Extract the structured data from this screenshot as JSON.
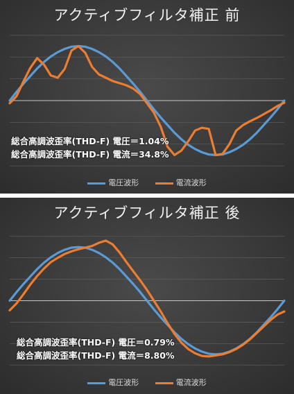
{
  "colors": {
    "voltage": "#5b9bd5",
    "current": "#ed7d31",
    "gridline": "#5a5a5a",
    "zeroline": "#c8c8c8"
  },
  "chart_data": [
    {
      "type": "line",
      "title": "アクティブフィルタ補正 前",
      "xlabel": "",
      "ylabel": "",
      "ylim": [
        -1.3,
        1.3
      ],
      "grid": true,
      "legend_position": "bottom",
      "x": [
        0,
        1,
        2,
        3,
        4,
        5,
        6,
        7,
        8,
        9,
        10,
        11,
        12,
        13,
        14,
        15,
        16,
        17,
        18,
        19,
        20,
        21,
        22,
        23,
        24,
        25,
        26,
        27,
        28,
        29,
        30,
        31,
        32,
        33,
        34,
        35,
        36,
        37,
        38,
        39,
        40
      ],
      "series": [
        {
          "name": "電圧波形",
          "values": [
            0.0,
            0.16,
            0.31,
            0.45,
            0.59,
            0.71,
            0.81,
            0.89,
            0.95,
            0.99,
            1.0,
            0.99,
            0.95,
            0.89,
            0.81,
            0.71,
            0.59,
            0.45,
            0.31,
            0.16,
            0.0,
            -0.16,
            -0.31,
            -0.45,
            -0.59,
            -0.71,
            -0.81,
            -0.89,
            -0.95,
            -0.99,
            -1.0,
            -0.99,
            -0.95,
            -0.89,
            -0.81,
            -0.71,
            -0.59,
            -0.45,
            -0.31,
            -0.16,
            0.0
          ]
        },
        {
          "name": "電流波形",
          "values": [
            -0.05,
            0.08,
            0.35,
            0.6,
            0.78,
            0.66,
            0.46,
            0.42,
            0.58,
            0.92,
            1.0,
            0.88,
            0.62,
            0.48,
            0.42,
            0.36,
            0.32,
            0.28,
            0.22,
            0.12,
            -0.05,
            -0.22,
            -0.48,
            -0.85,
            -1.0,
            -0.92,
            -0.75,
            -0.55,
            -0.5,
            -0.52,
            -1.0,
            -0.98,
            -0.8,
            -0.55,
            -0.45,
            -0.38,
            -0.32,
            -0.25,
            -0.18,
            -0.1,
            -0.04
          ]
        }
      ],
      "annotations": [
        "総合高調波歪率(THD-F) 電圧＝1.04%",
        "総合高調波歪率(THD-F) 電流＝34.8%"
      ]
    },
    {
      "type": "line",
      "title": "アクティブフィルタ補正 後",
      "xlabel": "",
      "ylabel": "",
      "ylim": [
        -1.3,
        1.3
      ],
      "grid": true,
      "legend_position": "bottom",
      "x": [
        0,
        1,
        2,
        3,
        4,
        5,
        6,
        7,
        8,
        9,
        10,
        11,
        12,
        13,
        14,
        15,
        16,
        17,
        18,
        19,
        20,
        21,
        22,
        23,
        24,
        25,
        26,
        27,
        28,
        29,
        30,
        31,
        32,
        33,
        34,
        35,
        36,
        37,
        38,
        39,
        40
      ],
      "series": [
        {
          "name": "電圧波形",
          "values": [
            0.0,
            0.16,
            0.31,
            0.45,
            0.59,
            0.71,
            0.81,
            0.89,
            0.95,
            0.99,
            1.0,
            0.99,
            0.95,
            0.89,
            0.81,
            0.71,
            0.59,
            0.45,
            0.31,
            0.16,
            0.0,
            -0.16,
            -0.31,
            -0.45,
            -0.59,
            -0.71,
            -0.81,
            -0.89,
            -0.95,
            -0.99,
            -1.0,
            -0.99,
            -0.95,
            -0.89,
            -0.81,
            -0.71,
            -0.59,
            -0.45,
            -0.31,
            -0.16,
            0.0
          ]
        },
        {
          "name": "電流波形",
          "values": [
            -0.18,
            -0.05,
            0.12,
            0.3,
            0.46,
            0.6,
            0.72,
            0.8,
            0.87,
            0.92,
            0.96,
            0.99,
            1.02,
            1.08,
            1.12,
            1.05,
            0.9,
            0.72,
            0.55,
            0.38,
            0.2,
            0.0,
            -0.2,
            -0.42,
            -0.62,
            -0.78,
            -0.9,
            -0.98,
            -1.03,
            -1.04,
            -1.02,
            -1.0,
            -0.96,
            -0.9,
            -0.82,
            -0.72,
            -0.6,
            -0.48,
            -0.36,
            -0.26,
            -0.2
          ]
        }
      ],
      "annotations": [
        "総合高調波歪率(THD-F) 電圧＝0.79%",
        "総合高調波歪率(THD-F) 電流＝8.80%"
      ]
    }
  ]
}
